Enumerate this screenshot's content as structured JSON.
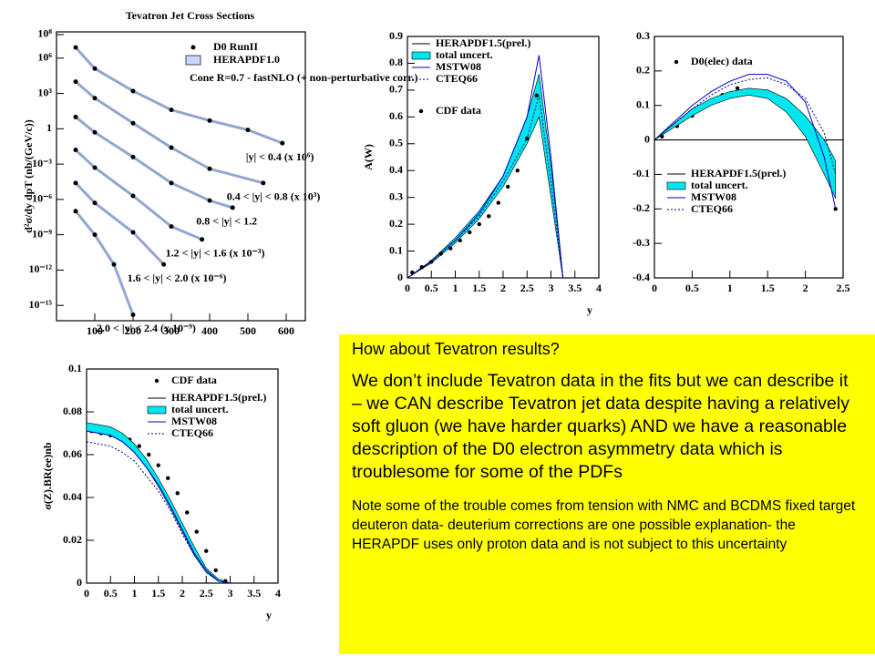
{
  "chart_data": [
    {
      "type": "scatter",
      "title": "Tevatron Jet Cross Sections",
      "ylabel": "d²σ/dy dpT (nb/(GeV/c))",
      "ylog": true,
      "legend": [
        "D0 RunII",
        "HERAPDF1.0"
      ],
      "annotation": "Cone R=0.7 - fastNLO (+ non-perturbative corr.)",
      "xlim": [
        0,
        650
      ],
      "xticks": [
        100,
        200,
        300,
        400,
        500,
        600
      ],
      "ylim": [
        5e-17,
        170000000.0
      ],
      "yticks": [
        {
          "value": 100000000.0,
          "label": "10⁸"
        },
        {
          "value": 1000000.0,
          "label": "10⁶"
        },
        {
          "value": 1000.0,
          "label": "10³"
        },
        1,
        {
          "value": 0.001,
          "label": "10⁻³"
        },
        {
          "value": 1e-06,
          "label": "10⁻⁶"
        },
        {
          "value": 1e-09,
          "label": "10⁻⁹"
        },
        {
          "value": 1e-12,
          "label": "10⁻¹²"
        },
        {
          "value": 1e-15,
          "label": "10⁻¹⁵"
        }
      ],
      "series": [
        {
          "name": "|y| < 0.4 (x 10⁶)",
          "color": "#000000",
          "x": [
            50,
            100,
            200,
            300,
            400,
            500,
            590
          ],
          "values": [
            8000000.0,
            130000.0,
            1600.0,
            40,
            5,
            0.8,
            0.06
          ]
        },
        {
          "name": "0.4 < |y| < 0.8 (x 10³)",
          "color": "#000000",
          "x": [
            50,
            100,
            200,
            300,
            400,
            540
          ],
          "values": [
            10000.0,
            400,
            3,
            0.025,
            0.0004,
            2.5e-05
          ]
        },
        {
          "name": "0.8 < |y| < 1.2",
          "color": "#000000",
          "x": [
            50,
            100,
            200,
            300,
            400,
            460
          ],
          "values": [
            10,
            0.5,
            0.004,
            2.5e-05,
            8e-07,
            2e-07
          ]
        },
        {
          "name": "1.2 < |y| < 1.6 (x 10⁻³)",
          "color": "#000000",
          "x": [
            50,
            100,
            200,
            300,
            380
          ],
          "values": [
            0.016,
            0.0005,
            2e-06,
            5e-09,
            4e-10
          ]
        },
        {
          "name": "1.6 < |y| < 2.0 (x 10⁻⁶)",
          "color": "#000000",
          "x": [
            50,
            100,
            200,
            280
          ],
          "values": [
            2.5e-05,
            5e-07,
            1.6e-09,
            3e-12
          ]
        },
        {
          "name": "2.0 < |y| < 2.4 (x 10⁻⁹)",
          "color": "#000000",
          "x": [
            50,
            100,
            150,
            200
          ],
          "values": [
            1e-07,
            1e-09,
            3e-12,
            1.6e-16
          ]
        }
      ]
    },
    {
      "type": "line",
      "ylabel": "A(W)",
      "xlabel": "y",
      "xlim": [
        0,
        4
      ],
      "xticks": [
        0,
        0.5,
        1,
        1.5,
        2,
        2.5,
        3,
        3.5,
        4
      ],
      "ylim": [
        0,
        0.9
      ],
      "yticks": [
        0,
        0.1,
        0.2,
        0.3,
        0.4,
        0.5,
        0.6,
        0.7,
        0.8,
        0.9
      ],
      "x": [
        0,
        0.5,
        1,
        1.5,
        2,
        2.5,
        2.75,
        3,
        3.25
      ],
      "series": [
        {
          "name": "HERAPDF1.5(prel.)",
          "color": "#000000",
          "style": "solid",
          "values": [
            0,
            0.06,
            0.14,
            0.23,
            0.36,
            0.55,
            0.73,
            0.35,
            0
          ]
        },
        {
          "name": "total uncert.",
          "color": "#00e5ee",
          "style": "band",
          "low": [
            0,
            0.055,
            0.13,
            0.22,
            0.34,
            0.5,
            0.6,
            0.3,
            0
          ],
          "high": [
            0,
            0.065,
            0.15,
            0.25,
            0.38,
            0.6,
            0.76,
            0.42,
            0
          ]
        },
        {
          "name": "MSTW08",
          "color": "#0000cc",
          "style": "solid",
          "values": [
            0,
            0.06,
            0.14,
            0.24,
            0.38,
            0.6,
            0.83,
            0.45,
            0
          ]
        },
        {
          "name": "CTEQ66",
          "color": "#000080",
          "style": "dotted",
          "values": [
            0,
            0.06,
            0.14,
            0.23,
            0.36,
            0.52,
            0.68,
            0.35,
            0
          ]
        },
        {
          "name": "CDF data",
          "color": "#000000",
          "style": "points",
          "x": [
            0.1,
            0.3,
            0.5,
            0.7,
            0.9,
            1.1,
            1.3,
            1.5,
            1.7,
            1.9,
            2.1,
            2.3,
            2.5,
            2.7
          ],
          "values": [
            0.02,
            0.04,
            0.06,
            0.09,
            0.11,
            0.14,
            0.17,
            0.2,
            0.23,
            0.28,
            0.34,
            0.4,
            0.52,
            0.68
          ]
        }
      ]
    },
    {
      "type": "line",
      "xlim": [
        0,
        2.5
      ],
      "xticks": [
        0,
        0.5,
        1,
        1.5,
        2,
        2.5
      ],
      "ylim": [
        -0.4,
        0.3
      ],
      "yticks": [
        -0.4,
        -0.3,
        -0.2,
        -0.1,
        0,
        0.1,
        0.2,
        0.3
      ],
      "x": [
        0,
        0.25,
        0.5,
        0.75,
        1,
        1.25,
        1.5,
        1.75,
        2,
        2.25,
        2.4
      ],
      "series": [
        {
          "name": "D0(elec) data",
          "color": "#000000",
          "style": "points",
          "x": [
            0.1,
            0.3,
            0.5,
            0.7,
            0.9,
            1.1,
            1.3,
            1.5,
            1.7,
            1.9,
            2.1,
            2.4
          ],
          "values": [
            0.01,
            0.04,
            0.07,
            0.1,
            0.13,
            0.15,
            0.14,
            0.14,
            0.12,
            0.07,
            0.01,
            -0.2
          ]
        },
        {
          "name": "HERAPDF1.5(prel.)",
          "color": "#000000",
          "style": "solid",
          "values": [
            0,
            0.04,
            0.08,
            0.11,
            0.13,
            0.14,
            0.13,
            0.1,
            0.04,
            -0.05,
            -0.12
          ]
        },
        {
          "name": "total uncert.",
          "color": "#00e5ee",
          "style": "band",
          "low": [
            0,
            0.035,
            0.07,
            0.1,
            0.12,
            0.13,
            0.12,
            0.08,
            0.01,
            -0.1,
            -0.17
          ],
          "high": [
            0,
            0.045,
            0.09,
            0.12,
            0.14,
            0.15,
            0.145,
            0.12,
            0.07,
            0,
            -0.06
          ]
        },
        {
          "name": "MSTW08",
          "color": "#0000cc",
          "style": "solid",
          "values": [
            0,
            0.05,
            0.1,
            0.14,
            0.17,
            0.19,
            0.19,
            0.17,
            0.11,
            -0.05,
            -0.2
          ]
        },
        {
          "name": "CTEQ66",
          "color": "#000080",
          "style": "dotted",
          "values": [
            0,
            0.045,
            0.09,
            0.13,
            0.16,
            0.175,
            0.18,
            0.16,
            0.12,
            0.02,
            -0.1
          ]
        }
      ]
    },
    {
      "type": "line",
      "ylabel": "σ(Z).BR(ee)nb",
      "xlabel": "y",
      "xlim": [
        0,
        4
      ],
      "xticks": [
        0,
        0.5,
        1,
        1.5,
        2,
        2.5,
        3,
        3.5,
        4
      ],
      "ylim": [
        0,
        0.1
      ],
      "yticks": [
        0,
        0.02,
        0.04,
        0.06,
        0.08,
        0.1
      ],
      "x": [
        0,
        0.25,
        0.5,
        0.75,
        1,
        1.25,
        1.5,
        1.75,
        2,
        2.25,
        2.5,
        2.75,
        3
      ],
      "series": [
        {
          "name": "CDF data",
          "color": "#000000",
          "style": "points",
          "x": [
            0.1,
            0.3,
            0.5,
            0.7,
            0.9,
            1.1,
            1.3,
            1.5,
            1.7,
            1.9,
            2.1,
            2.3,
            2.5,
            2.7,
            2.9
          ],
          "values": [
            0.071,
            0.07,
            0.069,
            0.068,
            0.067,
            0.064,
            0.06,
            0.055,
            0.049,
            0.042,
            0.033,
            0.024,
            0.015,
            0.006,
            0.001
          ]
        },
        {
          "name": "HERAPDF1.5(prel.)",
          "color": "#000000",
          "style": "solid",
          "values": [
            0.073,
            0.072,
            0.071,
            0.068,
            0.063,
            0.056,
            0.047,
            0.037,
            0.026,
            0.015,
            0.006,
            0.001,
            0
          ]
        },
        {
          "name": "total uncert.",
          "color": "#00e5ee",
          "style": "band",
          "low": [
            0.071,
            0.07,
            0.069,
            0.066,
            0.061,
            0.054,
            0.045,
            0.035,
            0.024,
            0.013,
            0.005,
            0.001,
            0
          ],
          "high": [
            0.075,
            0.074,
            0.073,
            0.07,
            0.065,
            0.058,
            0.049,
            0.039,
            0.028,
            0.017,
            0.007,
            0.002,
            0
          ]
        },
        {
          "name": "MSTW08",
          "color": "#0000cc",
          "style": "solid",
          "values": [
            0.071,
            0.07,
            0.069,
            0.066,
            0.061,
            0.054,
            0.046,
            0.036,
            0.025,
            0.014,
            0.006,
            0.001,
            0
          ]
        },
        {
          "name": "CTEQ66",
          "color": "#000080",
          "style": "dotted",
          "values": [
            0.066,
            0.065,
            0.064,
            0.061,
            0.057,
            0.05,
            0.043,
            0.034,
            0.023,
            0.013,
            0.005,
            0.001,
            0
          ]
        }
      ]
    }
  ],
  "text_box": {
    "heading": "How about Tevatron results?",
    "body": "We don’t include Tevatron data in the fits but we can describe it  – we CAN describe Tevatron jet data despite having a relatively soft gluon (we have harder quarks) AND we have a reasonable description of the D0 electron asymmetry data which is troublesome for some of the PDFs",
    "note": "Note some of the trouble comes from tension with NMC and BCDMS fixed target deuteron data- deuterium corrections are one possible explanation- the HERAPDF uses only proton data and is not subject to this uncertainty"
  }
}
